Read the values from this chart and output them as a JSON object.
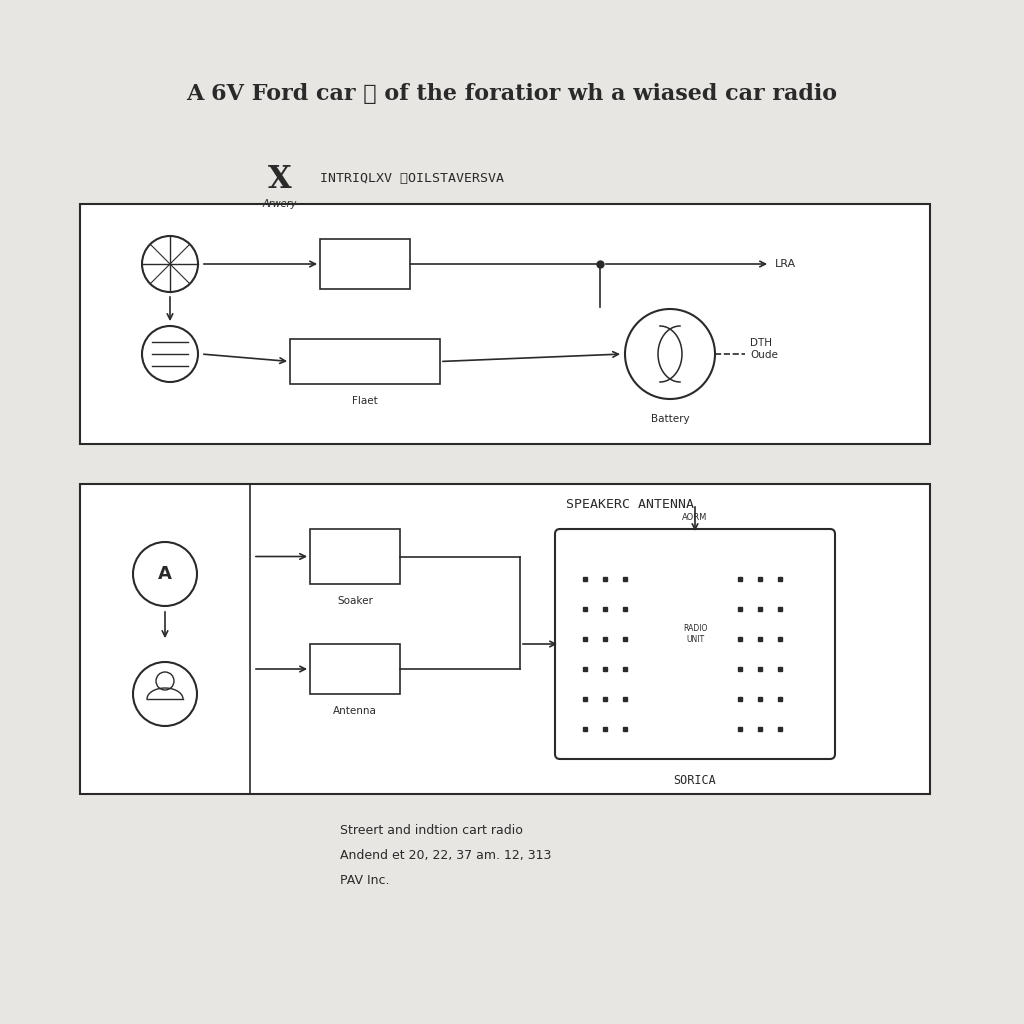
{
  "title": "A 6V Ford car Ⓢ of the foratior wh a wiased car radio",
  "bg_color": "#e8e6e2",
  "line_color": "#2a2a2a",
  "legend_symbol": "X",
  "legend_label1": "INTRIQLXV ⓁOILSTAVERSVA",
  "legend_sublabel": "Arwery",
  "box1_label": "Flaet",
  "box2_label": "Battery",
  "lra_label": "LRA",
  "dth_label": "DTH\nOude",
  "speaker_label": "SPEAKERC ANTENNA",
  "sorica_label": "SORICA",
  "speaker_sublabel": "Soaker",
  "antenna_sublabel": "Antenna",
  "aform_label": "AORM",
  "footer_line1": "Streert and indtion cart radio",
  "footer_line2": "Andend et 20, 22, 37 am. 12, 313",
  "footer_line3": "PAV Inc."
}
